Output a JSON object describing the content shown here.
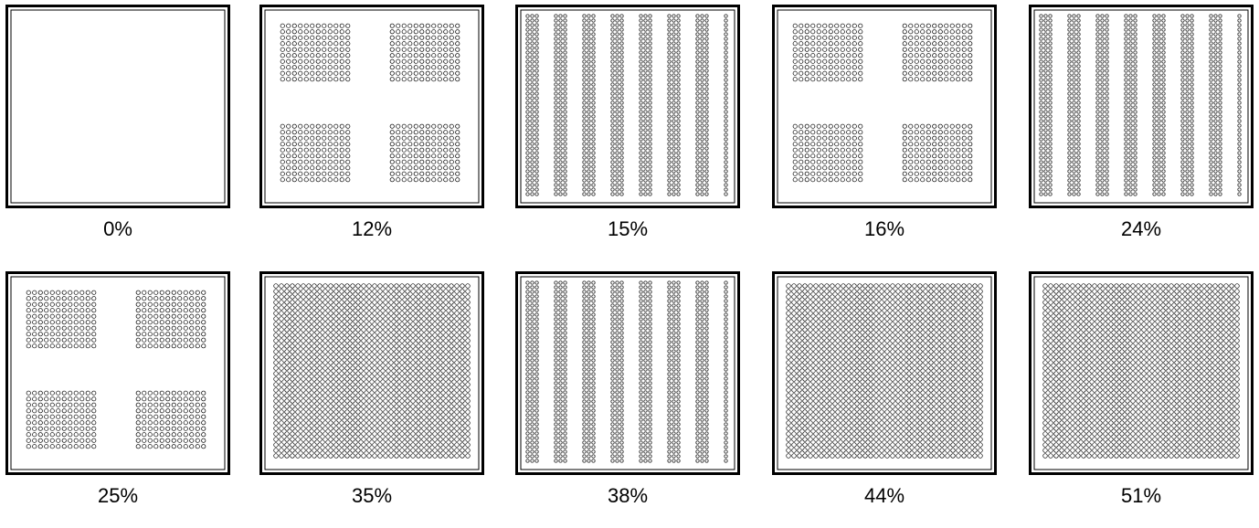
{
  "panels": [
    {
      "label": "0%",
      "pattern": "empty"
    },
    {
      "label": "12%",
      "pattern": "four-blocks"
    },
    {
      "label": "15%",
      "pattern": "vertical-strips"
    },
    {
      "label": "16%",
      "pattern": "four-blocks"
    },
    {
      "label": "24%",
      "pattern": "vertical-strips"
    },
    {
      "label": "25%",
      "pattern": "four-blocks"
    },
    {
      "label": "35%",
      "pattern": "full-grid"
    },
    {
      "label": "38%",
      "pattern": "vertical-strips"
    },
    {
      "label": "44%",
      "pattern": "full-grid"
    },
    {
      "label": "51%",
      "pattern": "full-grid"
    }
  ],
  "colors": {
    "stroke": "#000000",
    "background": "#ffffff"
  }
}
